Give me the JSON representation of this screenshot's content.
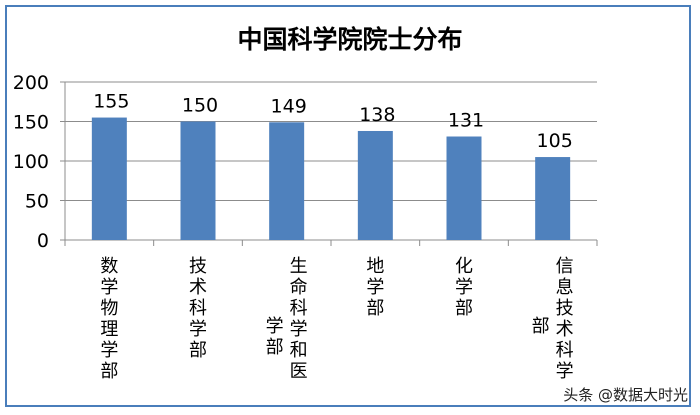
{
  "chart_data": {
    "type": "bar",
    "title": "中国科学院院士分布",
    "categories": [
      "数学物理学部",
      "技术科学部",
      "生命科学和医学部",
      "地学部",
      "化学部",
      "信息技术科学部"
    ],
    "values": [
      155,
      150,
      149,
      138,
      131,
      105
    ],
    "ylim": [
      0,
      200
    ],
    "yticks": [
      0,
      50,
      100,
      150,
      200
    ],
    "grid": true,
    "bar_color": "#4f81bd",
    "xlabel": "",
    "ylabel": ""
  },
  "watermark": "头条 @数据大时光"
}
